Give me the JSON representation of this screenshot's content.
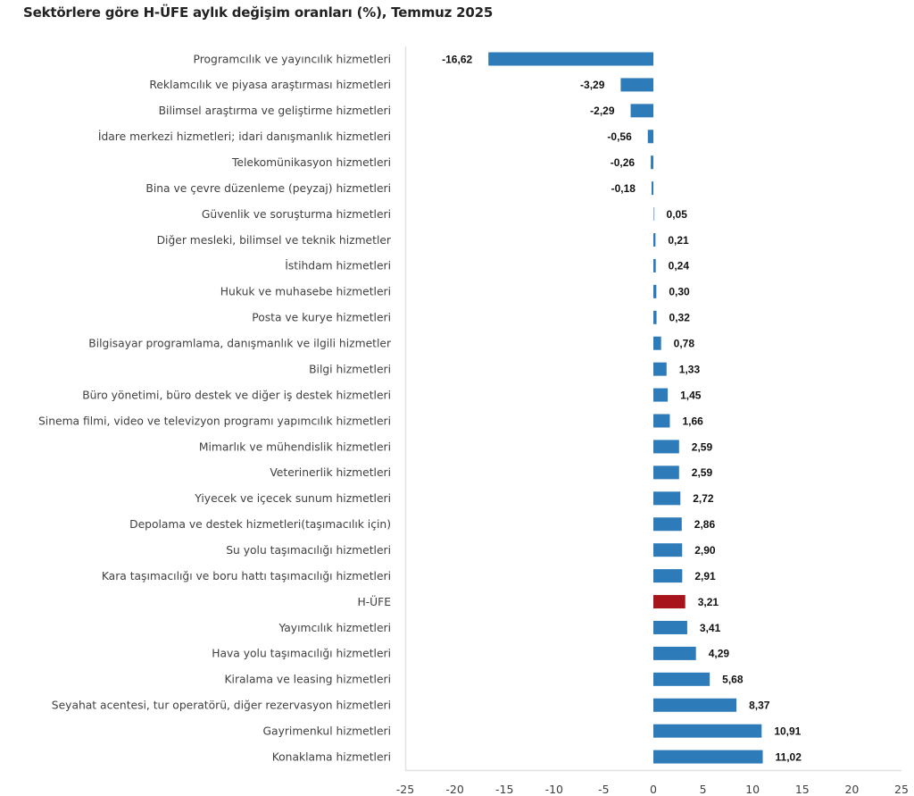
{
  "chart_data": {
    "type": "bar",
    "orientation": "horizontal",
    "title": "Sektörlere göre H-ÜFE aylık değişim oranları (%), Temmuz 2025",
    "xlabel": "",
    "ylabel": "",
    "xlim": [
      -25,
      25
    ],
    "xticks": [
      -25,
      -20,
      -15,
      -10,
      -5,
      0,
      5,
      10,
      15,
      20,
      25
    ],
    "grid": false,
    "legend": "none",
    "colors": {
      "default": "#2e7bba",
      "highlight": "#a8141b",
      "axis": "#e2e2e2"
    },
    "categories": [
      "Programcılık ve yayıncılık hizmetleri",
      "Reklamcılık ve piyasa araştırması hizmetleri",
      "Bilimsel araştırma ve geliştirme hizmetleri",
      "İdare merkezi hizmetleri; idari danışmanlık hizmetleri",
      "Telekomünikasyon hizmetleri",
      "Bina ve çevre düzenleme (peyzaj) hizmetleri",
      "Güvenlik ve soruşturma hizmetleri",
      "Diğer mesleki, bilimsel ve teknik hizmetler",
      "İstihdam hizmetleri",
      "Hukuk ve muhasebe hizmetleri",
      "Posta ve kurye hizmetleri",
      "Bilgisayar programlama, danışmanlık ve ilgili hizmetler",
      "Bilgi hizmetleri",
      "Büro yönetimi, büro destek ve diğer iş destek hizmetleri",
      "Sinema filmi, video ve televizyon programı yapımcılık hizmetleri",
      "Mimarlık ve mühendislik hizmetleri",
      "Veterinerlik hizmetleri",
      "Yiyecek ve içecek sunum hizmetleri",
      "Depolama ve destek hizmetleri(taşımacılık için)",
      "Su yolu taşımacılığı hizmetleri",
      "Kara taşımacılığı ve boru hattı taşımacılığı hizmetleri",
      "H-ÜFE",
      "Yayımcılık hizmetleri",
      "Hava yolu taşımacılığı hizmetleri",
      "Kiralama ve leasing hizmetleri",
      "Seyahat acentesi, tur operatörü, diğer rezervasyon hizmetleri",
      "Gayrimenkul hizmetleri",
      "Konaklama hizmetleri"
    ],
    "values": [
      -16.62,
      -3.29,
      -2.29,
      -0.56,
      -0.26,
      -0.18,
      0.05,
      0.21,
      0.24,
      0.3,
      0.32,
      0.78,
      1.33,
      1.45,
      1.66,
      2.59,
      2.59,
      2.72,
      2.86,
      2.9,
      2.91,
      3.21,
      3.41,
      4.29,
      5.68,
      8.37,
      10.91,
      11.02
    ],
    "value_labels": [
      "-16,62",
      "-3,29",
      "-2,29",
      "-0,56",
      "-0,26",
      "-0,18",
      "0,05",
      "0,21",
      "0,24",
      "0,30",
      "0,32",
      "0,78",
      "1,33",
      "1,45",
      "1,66",
      "2,59",
      "2,59",
      "2,72",
      "2,86",
      "2,90",
      "2,91",
      "3,21",
      "3,41",
      "4,29",
      "5,68",
      "8,37",
      "10,91",
      "11,02"
    ],
    "highlight_category": "H-ÜFE"
  }
}
